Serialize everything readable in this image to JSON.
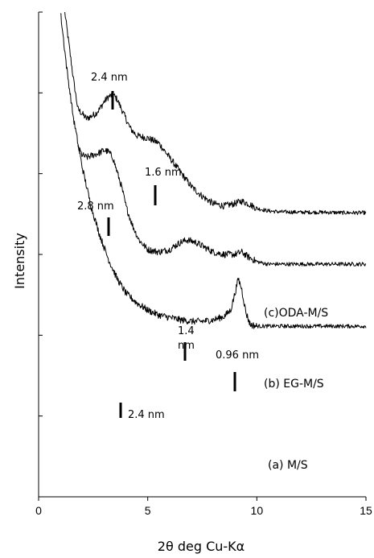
{
  "chart_data": {
    "type": "line",
    "xlabel": "2θ deg Cu-Kα",
    "ylabel": "Intensity",
    "xlim": [
      0,
      15
    ],
    "x_ticks": [
      "0",
      "5",
      "10",
      "15"
    ],
    "y_tick_count": 6,
    "grid": false,
    "series": [
      {
        "name": "(c)ODA-M/S",
        "points": [
          [
            1.2,
            1.0
          ],
          [
            1.4,
            0.93
          ],
          [
            1.6,
            0.86
          ],
          [
            1.8,
            0.8
          ],
          [
            2.0,
            0.79
          ],
          [
            2.2,
            0.78
          ],
          [
            2.4,
            0.785
          ],
          [
            2.6,
            0.79
          ],
          [
            2.8,
            0.8
          ],
          [
            3.0,
            0.815
          ],
          [
            3.2,
            0.825
          ],
          [
            3.4,
            0.83
          ],
          [
            3.6,
            0.82
          ],
          [
            3.8,
            0.8
          ],
          [
            4.0,
            0.78
          ],
          [
            4.2,
            0.76
          ],
          [
            4.5,
            0.745
          ],
          [
            5.0,
            0.74
          ],
          [
            5.5,
            0.73
          ],
          [
            6.0,
            0.7
          ],
          [
            6.5,
            0.67
          ],
          [
            7.0,
            0.64
          ],
          [
            7.5,
            0.62
          ],
          [
            8.0,
            0.605
          ],
          [
            8.5,
            0.6
          ],
          [
            9.0,
            0.605
          ],
          [
            9.3,
            0.61
          ],
          [
            9.6,
            0.605
          ],
          [
            10.0,
            0.595
          ],
          [
            10.5,
            0.59
          ],
          [
            11.0,
            0.588
          ],
          [
            12.0,
            0.587
          ],
          [
            13.0,
            0.587
          ],
          [
            14.0,
            0.586
          ],
          [
            15.0,
            0.586
          ]
        ]
      },
      {
        "name": "(b) EG-M/S",
        "points": [
          [
            1.8,
            0.72
          ],
          [
            2.0,
            0.705
          ],
          [
            2.2,
            0.7
          ],
          [
            2.5,
            0.705
          ],
          [
            2.8,
            0.71
          ],
          [
            3.0,
            0.715
          ],
          [
            3.2,
            0.712
          ],
          [
            3.4,
            0.7
          ],
          [
            3.6,
            0.67
          ],
          [
            3.8,
            0.64
          ],
          [
            4.0,
            0.6
          ],
          [
            4.3,
            0.56
          ],
          [
            4.6,
            0.53
          ],
          [
            5.0,
            0.51
          ],
          [
            5.5,
            0.505
          ],
          [
            6.0,
            0.51
          ],
          [
            6.5,
            0.525
          ],
          [
            6.8,
            0.53
          ],
          [
            7.2,
            0.525
          ],
          [
            7.6,
            0.515
          ],
          [
            8.0,
            0.505
          ],
          [
            8.5,
            0.5
          ],
          [
            9.0,
            0.5
          ],
          [
            9.3,
            0.505
          ],
          [
            9.6,
            0.495
          ],
          [
            10.0,
            0.485
          ],
          [
            10.5,
            0.48
          ],
          [
            11.0,
            0.48
          ],
          [
            12.0,
            0.48
          ],
          [
            13.0,
            0.48
          ],
          [
            14.0,
            0.48
          ],
          [
            15.0,
            0.48
          ]
        ]
      },
      {
        "name": "(a) M/S",
        "points": [
          [
            1.0,
            1.0
          ],
          [
            1.3,
            0.88
          ],
          [
            1.6,
            0.78
          ],
          [
            2.0,
            0.68
          ],
          [
            2.4,
            0.6
          ],
          [
            2.8,
            0.54
          ],
          [
            3.2,
            0.49
          ],
          [
            3.6,
            0.45
          ],
          [
            4.0,
            0.42
          ],
          [
            4.5,
            0.4
          ],
          [
            5.0,
            0.385
          ],
          [
            5.5,
            0.375
          ],
          [
            6.0,
            0.37
          ],
          [
            6.5,
            0.365
          ],
          [
            7.0,
            0.362
          ],
          [
            7.5,
            0.362
          ],
          [
            8.0,
            0.365
          ],
          [
            8.5,
            0.372
          ],
          [
            8.8,
            0.385
          ],
          [
            9.0,
            0.42
          ],
          [
            9.15,
            0.45
          ],
          [
            9.3,
            0.43
          ],
          [
            9.5,
            0.38
          ],
          [
            9.7,
            0.355
          ],
          [
            10.0,
            0.352
          ],
          [
            11.0,
            0.352
          ],
          [
            12.0,
            0.352
          ],
          [
            13.0,
            0.352
          ],
          [
            14.0,
            0.352
          ],
          [
            15.0,
            0.352
          ]
        ]
      }
    ],
    "annotations": [
      {
        "text": "2.4 nm",
        "x": 3.4
      },
      {
        "text": "1.6 nm",
        "x": 5.4
      },
      {
        "text": "2.8 nm",
        "x": 3.3
      },
      {
        "text": "1.4",
        "x": 6.8
      },
      {
        "text": "nm",
        "x": 6.8
      },
      {
        "text": "0.96 nm",
        "x": 9.0
      },
      {
        "text": "2.4 nm",
        "x": 3.8
      }
    ]
  }
}
